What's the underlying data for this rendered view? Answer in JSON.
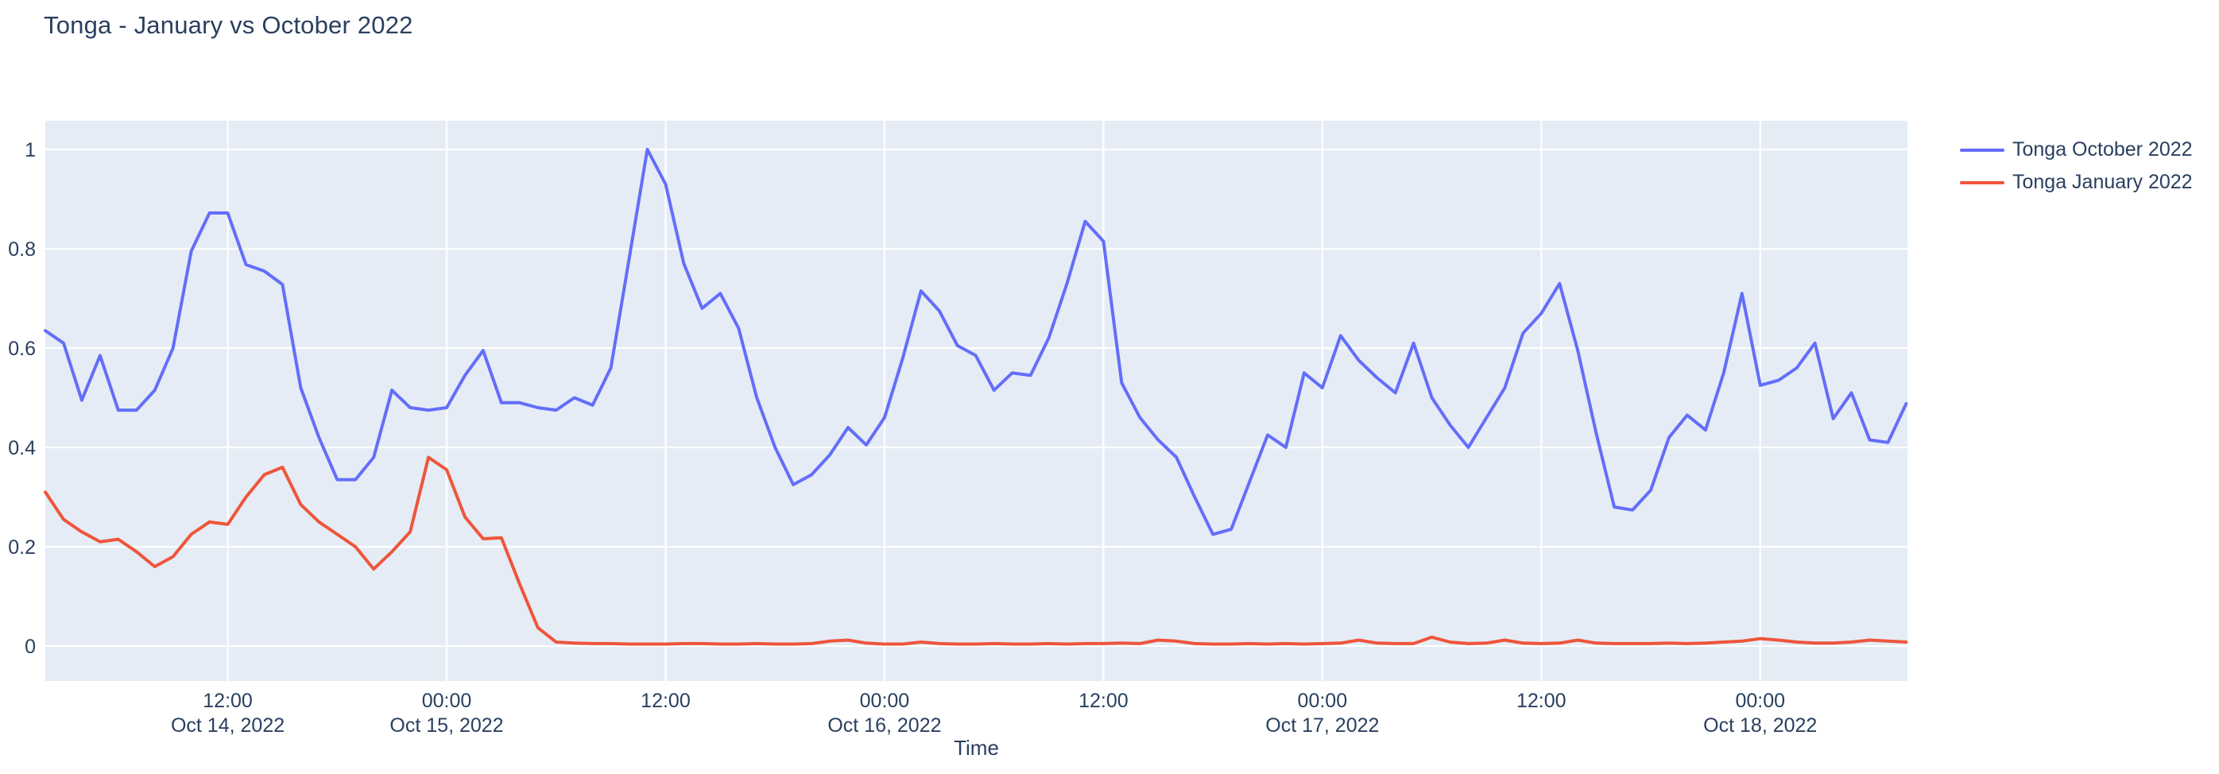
{
  "page": {
    "title": "Tonga - January vs October 2022"
  },
  "axis": {
    "x_title": "Time"
  },
  "legend": {
    "items": [
      {
        "label": "Tonga October 2022",
        "color": "#636efa"
      },
      {
        "label": "Tonga January 2022",
        "color": "#ef553b"
      }
    ]
  },
  "chart_data": {
    "type": "line",
    "title": "Tonga - January vs October 2022",
    "xlabel": "Time",
    "ylabel": "",
    "grid": true,
    "legend_position": "top-right",
    "plot_bgcolor": "#e5ecf6",
    "gridcolor": "#ffffff",
    "text_color": "#2a3f5f",
    "xlim_hours_from_oct14_0000": [
      2,
      104.07
    ],
    "ylim": [
      -0.0704,
      1.0576
    ],
    "y_ticks": [
      "0",
      "0.2",
      "0.4",
      "0.6",
      "0.8",
      "1"
    ],
    "y_tick_values": [
      0,
      0.2,
      0.4,
      0.6,
      0.8,
      1
    ],
    "x_ticks": [
      {
        "hour_offset": 12,
        "time": "12:00",
        "date": "Oct 14, 2022"
      },
      {
        "hour_offset": 24,
        "time": "00:00",
        "date": "Oct 15, 2022"
      },
      {
        "hour_offset": 36,
        "time": "12:00",
        "date": ""
      },
      {
        "hour_offset": 48,
        "time": "00:00",
        "date": "Oct 16, 2022"
      },
      {
        "hour_offset": 60,
        "time": "12:00",
        "date": ""
      },
      {
        "hour_offset": 72,
        "time": "00:00",
        "date": "Oct 17, 2022"
      },
      {
        "hour_offset": 84,
        "time": "12:00",
        "date": ""
      },
      {
        "hour_offset": 96,
        "time": "00:00",
        "date": "Oct 18, 2022"
      }
    ],
    "x_times": [
      "2022-10-14 02:00",
      "2022-10-14 03:00",
      "2022-10-14 04:00",
      "2022-10-14 05:00",
      "2022-10-14 06:00",
      "2022-10-14 07:00",
      "2022-10-14 08:00",
      "2022-10-14 09:00",
      "2022-10-14 10:00",
      "2022-10-14 11:00",
      "2022-10-14 12:00",
      "2022-10-14 13:00",
      "2022-10-14 14:00",
      "2022-10-14 15:00",
      "2022-10-14 16:00",
      "2022-10-14 17:00",
      "2022-10-14 18:00",
      "2022-10-14 19:00",
      "2022-10-14 20:00",
      "2022-10-14 21:00",
      "2022-10-14 22:00",
      "2022-10-14 23:00",
      "2022-10-15 00:00",
      "2022-10-15 01:00",
      "2022-10-15 02:00",
      "2022-10-15 03:00",
      "2022-10-15 04:00",
      "2022-10-15 05:00",
      "2022-10-15 06:00",
      "2022-10-15 07:00",
      "2022-10-15 08:00",
      "2022-10-15 09:00",
      "2022-10-15 10:00",
      "2022-10-15 11:00",
      "2022-10-15 12:00",
      "2022-10-15 13:00",
      "2022-10-15 14:00",
      "2022-10-15 15:00",
      "2022-10-15 16:00",
      "2022-10-15 17:00",
      "2022-10-15 18:00",
      "2022-10-15 19:00",
      "2022-10-15 20:00",
      "2022-10-15 21:00",
      "2022-10-15 22:00",
      "2022-10-15 23:00",
      "2022-10-16 00:00",
      "2022-10-16 01:00",
      "2022-10-16 02:00",
      "2022-10-16 03:00",
      "2022-10-16 04:00",
      "2022-10-16 05:00",
      "2022-10-16 06:00",
      "2022-10-16 07:00",
      "2022-10-16 08:00",
      "2022-10-16 09:00",
      "2022-10-16 10:00",
      "2022-10-16 11:00",
      "2022-10-16 12:00",
      "2022-10-16 13:00",
      "2022-10-16 14:00",
      "2022-10-16 15:00",
      "2022-10-16 16:00",
      "2022-10-16 17:00",
      "2022-10-16 18:00",
      "2022-10-16 19:00",
      "2022-10-16 20:00",
      "2022-10-16 21:00",
      "2022-10-16 22:00",
      "2022-10-16 23:00",
      "2022-10-17 00:00",
      "2022-10-17 01:00",
      "2022-10-17 02:00",
      "2022-10-17 03:00",
      "2022-10-17 04:00",
      "2022-10-17 05:00",
      "2022-10-17 06:00",
      "2022-10-17 07:00",
      "2022-10-17 08:00",
      "2022-10-17 09:00",
      "2022-10-17 10:00",
      "2022-10-17 11:00",
      "2022-10-17 12:00",
      "2022-10-17 13:00",
      "2022-10-17 14:00",
      "2022-10-17 15:00",
      "2022-10-17 16:00",
      "2022-10-17 17:00",
      "2022-10-17 18:00",
      "2022-10-17 19:00",
      "2022-10-17 20:00",
      "2022-10-17 21:00",
      "2022-10-17 22:00",
      "2022-10-17 23:00",
      "2022-10-18 00:00",
      "2022-10-18 01:00",
      "2022-10-18 02:00",
      "2022-10-18 03:00",
      "2022-10-18 04:00",
      "2022-10-18 05:00",
      "2022-10-18 06:00",
      "2022-10-18 07:00",
      "2022-10-18 08:00"
    ],
    "series": [
      {
        "name": "Tonga October 2022",
        "color": "#636efa",
        "values": [
          0.635,
          0.61,
          0.495,
          0.585,
          0.475,
          0.475,
          0.515,
          0.6,
          0.795,
          0.872,
          0.872,
          0.768,
          0.755,
          0.728,
          0.52,
          0.42,
          0.335,
          0.335,
          0.38,
          0.515,
          0.48,
          0.475,
          0.48,
          0.545,
          0.595,
          0.49,
          0.49,
          0.48,
          0.475,
          0.5,
          0.485,
          0.56,
          0.78,
          1.0,
          0.93,
          0.77,
          0.68,
          0.71,
          0.64,
          0.5,
          0.4,
          0.325,
          0.345,
          0.385,
          0.44,
          0.405,
          0.46,
          0.58,
          0.715,
          0.675,
          0.605,
          0.585,
          0.515,
          0.55,
          0.545,
          0.62,
          0.73,
          0.855,
          0.815,
          0.53,
          0.46,
          0.415,
          0.38,
          0.3,
          0.225,
          0.235,
          0.33,
          0.425,
          0.4,
          0.55,
          0.52,
          0.625,
          0.575,
          0.54,
          0.51,
          0.61,
          0.5,
          0.445,
          0.4,
          0.46,
          0.52,
          0.63,
          0.67,
          0.73,
          0.595,
          0.43,
          0.28,
          0.274,
          0.314,
          0.42,
          0.465,
          0.435,
          0.55,
          0.71,
          0.525,
          0.535,
          0.56,
          0.61,
          0.458,
          0.51,
          0.415,
          0.41,
          0.488
        ]
      },
      {
        "name": "Tonga January 2022",
        "color": "#ef553b",
        "values": [
          0.31,
          0.255,
          0.23,
          0.21,
          0.215,
          0.19,
          0.16,
          0.18,
          0.225,
          0.25,
          0.245,
          0.3,
          0.345,
          0.36,
          0.285,
          0.25,
          0.225,
          0.2,
          0.155,
          0.19,
          0.23,
          0.38,
          0.355,
          0.26,
          0.216,
          0.218,
          0.125,
          0.037,
          0.008,
          0.006,
          0.005,
          0.005,
          0.004,
          0.004,
          0.004,
          0.005,
          0.005,
          0.004,
          0.004,
          0.005,
          0.004,
          0.004,
          0.005,
          0.01,
          0.012,
          0.006,
          0.004,
          0.004,
          0.008,
          0.005,
          0.004,
          0.004,
          0.005,
          0.004,
          0.004,
          0.005,
          0.004,
          0.005,
          0.005,
          0.006,
          0.005,
          0.012,
          0.01,
          0.005,
          0.004,
          0.004,
          0.005,
          0.004,
          0.005,
          0.004,
          0.005,
          0.006,
          0.012,
          0.006,
          0.005,
          0.005,
          0.018,
          0.008,
          0.005,
          0.006,
          0.012,
          0.006,
          0.005,
          0.006,
          0.012,
          0.006,
          0.005,
          0.005,
          0.005,
          0.006,
          0.005,
          0.006,
          0.008,
          0.01,
          0.015,
          0.012,
          0.008,
          0.006,
          0.006,
          0.008,
          0.012,
          0.01,
          0.008
        ]
      }
    ]
  }
}
